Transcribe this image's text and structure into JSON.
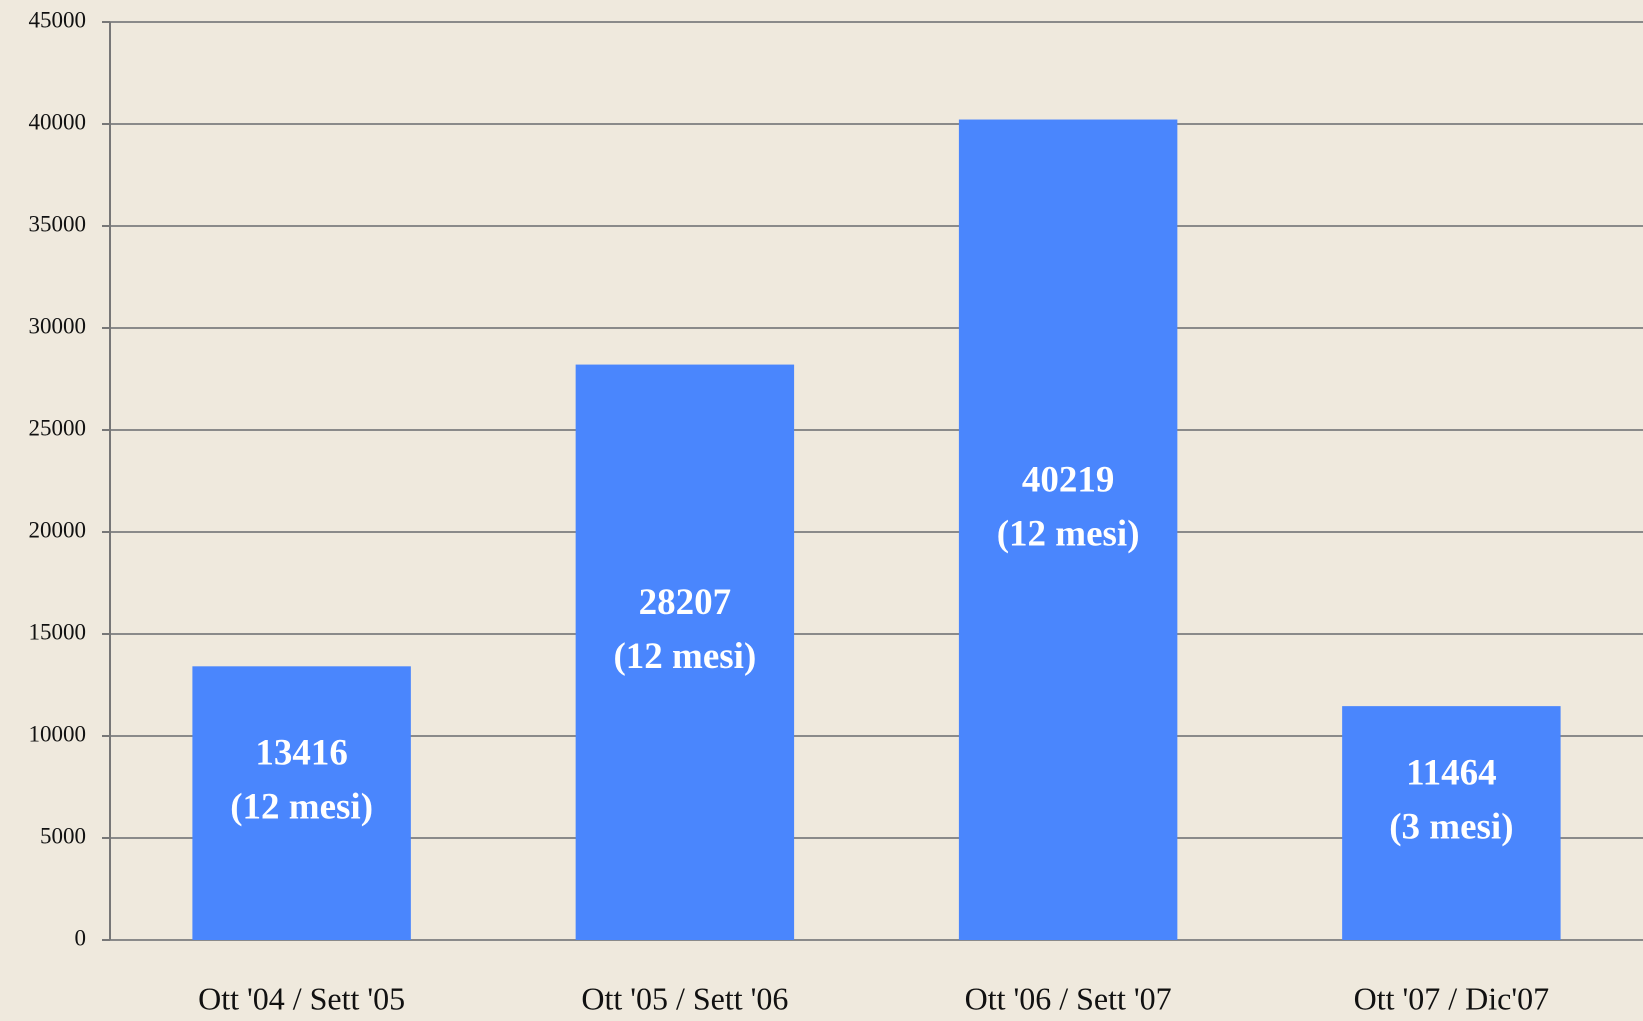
{
  "chart_data": {
    "type": "bar",
    "categories": [
      "Ott '04 / Sett '05",
      "Ott '05 / Sett '06",
      "Ott '06 / Sett '07",
      "Ott '07 / Dic'07"
    ],
    "values": [
      13416,
      28207,
      40219,
      11464
    ],
    "annotations": [
      "(12 mesi)",
      "(12 mesi)",
      "(12 mesi)",
      "(3 mesi)"
    ],
    "color": "#4a86fd",
    "ylim": [
      0,
      45000
    ],
    "yticks": [
      0,
      5000,
      10000,
      15000,
      20000,
      25000,
      30000,
      35000,
      40000,
      45000
    ],
    "grid": true
  }
}
